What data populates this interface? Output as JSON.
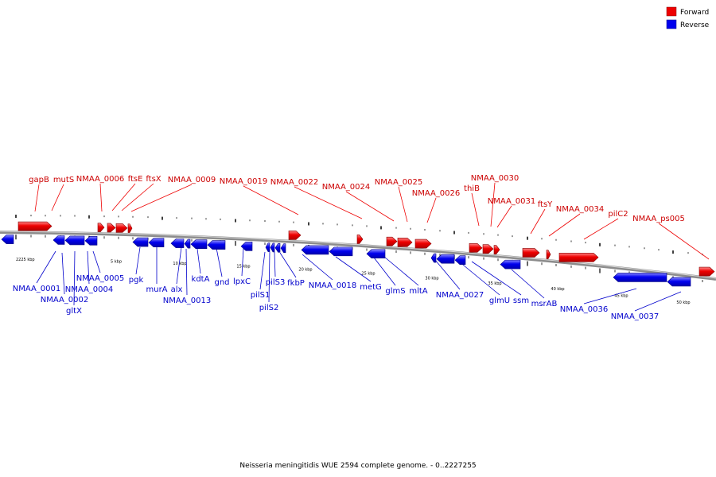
{
  "legend": {
    "forward_label": "Forward",
    "reverse_label": "Reverse",
    "forward_color": "#ee0000",
    "reverse_color": "#0000ee"
  },
  "caption": "Neisseria meningitidis WUE 2594 complete genome. - 0..2227255",
  "colors": {
    "backbone": "#8c8c8c",
    "forward_text": "#cc0000",
    "reverse_text": "#0000cc",
    "leader": "#000000"
  },
  "scale": {
    "start_label": "2225 kbp",
    "labels": [
      "5 kbp",
      "10 kbp",
      "15 kbp",
      "20 kbp",
      "25 kbp",
      "30 kbp",
      "35 kbp",
      "40 kbp",
      "45 kbp",
      "50 kbp"
    ]
  },
  "forward_genes": [
    {
      "name": "gapB"
    },
    {
      "name": "mutS"
    },
    {
      "name": "NMAA_0006"
    },
    {
      "name": "ftsE"
    },
    {
      "name": "ftsX"
    },
    {
      "name": "NMAA_0009"
    },
    {
      "name": "NMAA_0019"
    },
    {
      "name": "NMAA_0022"
    },
    {
      "name": "NMAA_0024"
    },
    {
      "name": "NMAA_0025"
    },
    {
      "name": "NMAA_0026"
    },
    {
      "name": "thiB"
    },
    {
      "name": "NMAA_0030"
    },
    {
      "name": "NMAA_0031"
    },
    {
      "name": "ftsY"
    },
    {
      "name": "NMAA_0034"
    },
    {
      "name": "pilC2"
    },
    {
      "name": "NMAA_ps005"
    }
  ],
  "reverse_genes": [
    {
      "name": "NMAA_0001"
    },
    {
      "name": "NMAA_0002"
    },
    {
      "name": "gltX"
    },
    {
      "name": "NMAA_0004"
    },
    {
      "name": "NMAA_0005"
    },
    {
      "name": "pgk"
    },
    {
      "name": "murA"
    },
    {
      "name": "alx"
    },
    {
      "name": "NMAA_0013"
    },
    {
      "name": "kdtA"
    },
    {
      "name": "gnd"
    },
    {
      "name": "lpxC"
    },
    {
      "name": "pilS1"
    },
    {
      "name": "pilS2"
    },
    {
      "name": "pilS3"
    },
    {
      "name": "fkbP"
    },
    {
      "name": "NMAA_0018"
    },
    {
      "name": "metG"
    },
    {
      "name": "glmS"
    },
    {
      "name": "mltA"
    },
    {
      "name": "NMAA_0027"
    },
    {
      "name": "glmU"
    },
    {
      "name": "ssm"
    },
    {
      "name": "msrAB"
    },
    {
      "name": "NMAA_0036"
    },
    {
      "name": "NMAA_0037"
    }
  ]
}
